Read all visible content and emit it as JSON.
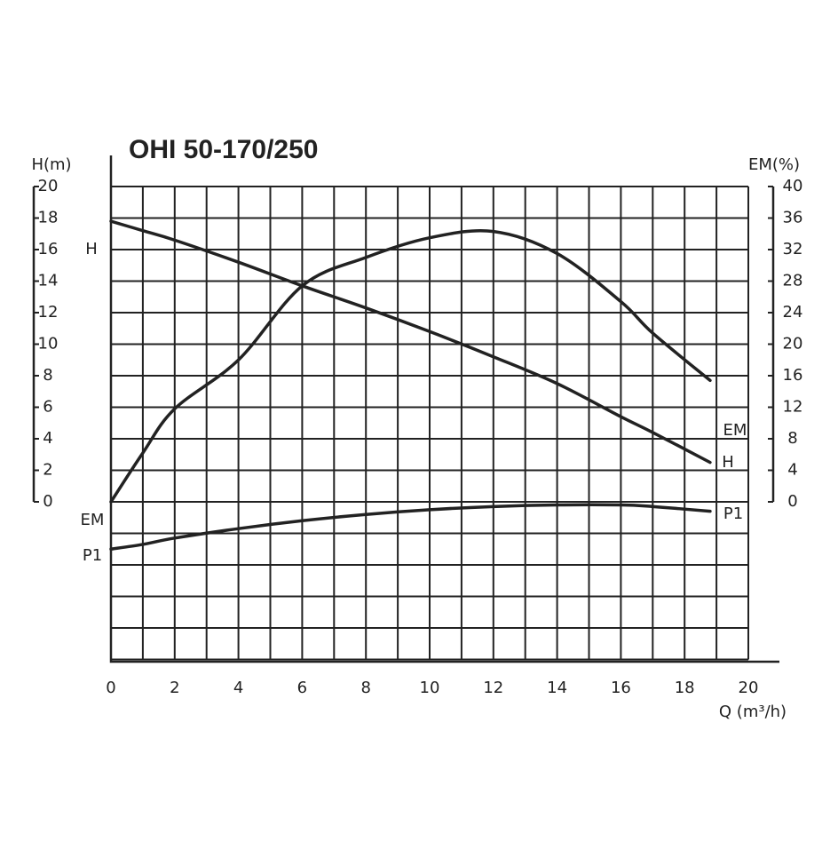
{
  "chart_data": {
    "type": "line",
    "title": "OHI 50-170/250",
    "x_label": "Q (m³/h)",
    "y_label": "H(m)",
    "y2_label": "EM(%)",
    "x": [
      0,
      1,
      2,
      4,
      6,
      8,
      10,
      12,
      14,
      16,
      17,
      18.8
    ],
    "series": [
      {
        "name": "H",
        "color": "#222222",
        "values": [
          17.8,
          17.2,
          16.6,
          15.2,
          13.7,
          12.3,
          10.8,
          9.2,
          7.5,
          5.4,
          4.4,
          2.5
        ]
      },
      {
        "name": "EM",
        "color": "#222222",
        "axis": "y2",
        "values": [
          0,
          6.2,
          11.8,
          18,
          27.4,
          31,
          33.5,
          34.3,
          31.5,
          25.4,
          21.4,
          15.4
        ]
      },
      {
        "name": "P1",
        "color": "#222222",
        "values": [
          -3.0,
          -2.7,
          -2.3,
          -1.7,
          -1.2,
          -0.8,
          -0.5,
          -0.3,
          -0.2,
          -0.2,
          -0.3,
          -0.6
        ]
      }
    ],
    "xlim": [
      0,
      20
    ],
    "xticks": [
      0,
      2,
      4,
      6,
      8,
      10,
      12,
      14,
      16,
      18,
      20
    ],
    "ylim": [
      -10,
      20
    ],
    "yticks": [
      0,
      2,
      4,
      6,
      8,
      10,
      12,
      14,
      16,
      18,
      20
    ],
    "y2lim": [
      -20,
      40
    ],
    "y2ticks": [
      0,
      4,
      8,
      12,
      16,
      20,
      24,
      28,
      32,
      36,
      40
    ],
    "grid": true
  }
}
